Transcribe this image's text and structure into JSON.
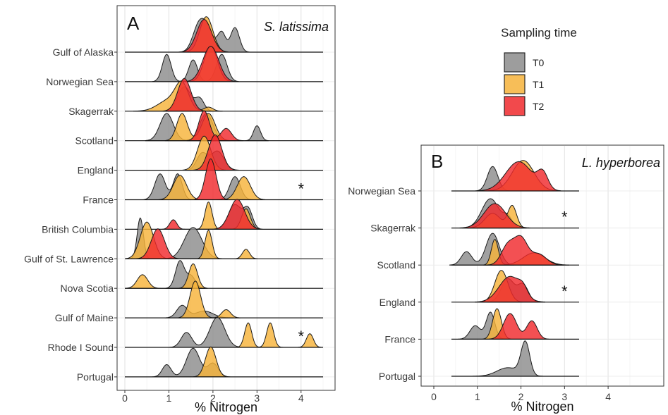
{
  "legend": {
    "title": "Sampling time",
    "items": [
      {
        "label": "T0",
        "color": "#8c8c8c"
      },
      {
        "label": "T1",
        "color": "#f6b33b"
      },
      {
        "label": "T2",
        "color": "#f0292d"
      }
    ]
  },
  "chart_data": [
    {
      "type": "ridgeline",
      "panel_label": "A",
      "species": "S. latissima",
      "xlabel": "% Nitrogen",
      "xlim": [
        0,
        4.5
      ],
      "x_ticks": [
        0,
        1,
        2,
        3,
        4
      ],
      "grid": true,
      "categories": [
        "Gulf of Alaska",
        "Norwegian Sea",
        "Skagerrak",
        "Scotland",
        "England",
        "France",
        "British Columbia",
        "Gulf of St. Lawrence",
        "Nova Scotia",
        "Gulf of Maine",
        "Rhode I Sound",
        "Portugal"
      ],
      "significance_markers": [
        {
          "row": "France",
          "x": 4.0,
          "text": "*"
        },
        {
          "row": "Rhode I Sound",
          "x": 4.0,
          "text": "*"
        }
      ],
      "series": {
        "T0": [
          {
            "row": "Gulf of Alaska",
            "peaks": [
              [
                1.65,
                0.13,
                0.7
              ],
              [
                1.85,
                0.15,
                0.9
              ],
              [
                2.2,
                0.09,
                0.7
              ],
              [
                2.5,
                0.1,
                0.9
              ]
            ]
          },
          {
            "row": "Norwegian Sea",
            "peaks": [
              [
                0.95,
                0.1,
                1.0
              ],
              [
                1.55,
                0.1,
                0.8
              ],
              [
                2.2,
                0.12,
                1.0
              ]
            ]
          },
          {
            "row": "Skagerrak",
            "peaks": [
              [
                1.35,
                0.15,
                0.9
              ],
              [
                1.7,
                0.1,
                0.45
              ]
            ]
          },
          {
            "row": "Scotland",
            "peaks": [
              [
                0.95,
                0.15,
                1.0
              ],
              [
                1.85,
                0.15,
                1.0
              ],
              [
                3.0,
                0.08,
                0.55
              ]
            ]
          },
          {
            "row": "England",
            "peaks": [
              [
                1.75,
                0.12,
                0.6
              ],
              [
                2.1,
                0.15,
                0.7
              ]
            ]
          },
          {
            "row": "France",
            "peaks": [
              [
                0.8,
                0.12,
                0.95
              ],
              [
                1.2,
                0.1,
                0.95
              ],
              [
                2.5,
                0.12,
                0.85
              ]
            ]
          },
          {
            "row": "British Columbia",
            "peaks": [
              [
                2.5,
                0.15,
                0.9
              ],
              [
                2.8,
                0.1,
                0.7
              ]
            ]
          },
          {
            "row": "Gulf of St. Lawrence",
            "peaks": [
              [
                0.35,
                0.07,
                1.5
              ],
              [
                1.55,
                0.2,
                1.15
              ]
            ]
          },
          {
            "row": "Nova Scotia",
            "peaks": [
              [
                1.25,
                0.1,
                1.0
              ],
              [
                1.5,
                0.1,
                0.45
              ]
            ]
          },
          {
            "row": "Gulf of Maine",
            "peaks": [
              [
                1.3,
                0.12,
                0.45
              ],
              [
                1.8,
                0.2,
                0.25
              ]
            ]
          },
          {
            "row": "Rhode I Sound",
            "peaks": [
              [
                1.4,
                0.12,
                0.55
              ],
              [
                2.1,
                0.17,
                1.1
              ]
            ]
          },
          {
            "row": "Portugal",
            "peaks": [
              [
                0.95,
                0.1,
                0.45
              ],
              [
                1.55,
                0.15,
                1.05
              ],
              [
                2.0,
                0.12,
                0.5
              ]
            ]
          }
        ],
        "T1": [
          {
            "row": "Gulf of Alaska",
            "peaks": [
              [
                1.85,
                0.15,
                1.3
              ]
            ]
          },
          {
            "row": "Norwegian Sea",
            "peaks": [
              [
                1.95,
                0.15,
                1.3
              ]
            ]
          },
          {
            "row": "Skagerrak",
            "peaks": [
              [
                1.0,
                0.25,
                0.4
              ],
              [
                1.3,
                0.15,
                0.9
              ],
              [
                1.9,
                0.1,
                0.15
              ]
            ]
          },
          {
            "row": "Scotland",
            "peaks": [
              [
                1.3,
                0.12,
                1.0
              ],
              [
                1.9,
                0.15,
                1.0
              ]
            ]
          },
          {
            "row": "England",
            "peaks": [
              [
                1.8,
                0.15,
                1.25
              ]
            ]
          },
          {
            "row": "France",
            "peaks": [
              [
                1.25,
                0.15,
                0.9
              ],
              [
                2.7,
                0.15,
                0.85
              ]
            ]
          },
          {
            "row": "British Columbia",
            "peaks": [
              [
                1.9,
                0.08,
                1.0
              ],
              [
                2.75,
                0.1,
                0.75
              ]
            ]
          },
          {
            "row": "Gulf of St. Lawrence",
            "peaks": [
              [
                0.5,
                0.15,
                1.35
              ],
              [
                1.9,
                0.08,
                1.05
              ],
              [
                2.75,
                0.08,
                0.35
              ]
            ]
          },
          {
            "row": "Nova Scotia",
            "peaks": [
              [
                0.4,
                0.12,
                0.5
              ],
              [
                1.55,
                0.1,
                0.9
              ]
            ]
          },
          {
            "row": "Gulf of Maine",
            "peaks": [
              [
                1.6,
                0.12,
                1.35
              ],
              [
                2.3,
                0.1,
                0.3
              ]
            ]
          },
          {
            "row": "Rhode I Sound",
            "peaks": [
              [
                2.8,
                0.08,
                0.9
              ],
              [
                3.3,
                0.08,
                0.9
              ],
              [
                4.2,
                0.08,
                0.5
              ]
            ]
          },
          {
            "row": "Portugal",
            "peaks": [
              [
                1.95,
                0.12,
                1.1
              ]
            ]
          }
        ],
        "T2": [
          {
            "row": "Gulf of Alaska",
            "peaks": [
              [
                1.8,
                0.17,
                1.2
              ]
            ]
          },
          {
            "row": "Norwegian Sea",
            "peaks": [
              [
                1.95,
                0.18,
                1.3
              ]
            ]
          },
          {
            "row": "Skagerrak",
            "peaks": [
              [
                1.35,
                0.15,
                1.2
              ]
            ]
          },
          {
            "row": "Scotland",
            "peaks": [
              [
                1.8,
                0.12,
                1.1
              ],
              [
                2.3,
                0.12,
                0.45
              ]
            ]
          },
          {
            "row": "England",
            "peaks": [
              [
                2.05,
                0.15,
                1.3
              ]
            ]
          },
          {
            "row": "France",
            "peaks": [
              [
                1.95,
                0.12,
                1.5
              ]
            ]
          },
          {
            "row": "British Columbia",
            "peaks": [
              [
                1.1,
                0.08,
                0.35
              ],
              [
                2.55,
                0.17,
                1.1
              ]
            ]
          },
          {
            "row": "Gulf of St. Lawrence",
            "peaks": [
              [
                0.75,
                0.15,
                1.1
              ]
            ]
          },
          {
            "row": "Nova Scotia",
            "peaks": []
          },
          {
            "row": "Gulf of Maine",
            "peaks": []
          },
          {
            "row": "Rhode I Sound",
            "peaks": []
          },
          {
            "row": "Portugal",
            "peaks": []
          }
        ]
      }
    },
    {
      "type": "ridgeline",
      "panel_label": "B",
      "species": "L. hyperborea",
      "xlabel": "% Nitrogen",
      "xlim": [
        0,
        4.5
      ],
      "x_ticks": [
        0,
        1,
        2,
        3,
        4
      ],
      "grid": true,
      "categories": [
        "Norwegian Sea",
        "Skagerrak",
        "Scotland",
        "England",
        "France",
        "Portugal"
      ],
      "significance_markers": [
        {
          "row": "Skagerrak",
          "x": 3.0,
          "text": "*"
        },
        {
          "row": "England",
          "x": 3.0,
          "text": "*"
        }
      ],
      "series": {
        "T0": [
          {
            "row": "Norwegian Sea",
            "peaks": [
              [
                1.35,
                0.12,
                1.0
              ]
            ]
          },
          {
            "row": "Skagerrak",
            "peaks": [
              [
                1.3,
                0.2,
                1.2
              ],
              [
                1.7,
                0.1,
                0.4
              ]
            ]
          },
          {
            "row": "Scotland",
            "peaks": [
              [
                0.75,
                0.12,
                0.55
              ],
              [
                1.35,
                0.15,
                1.3
              ]
            ]
          },
          {
            "row": "England",
            "peaks": [
              [
                1.7,
                0.15,
                0.95
              ],
              [
                2.05,
                0.12,
                0.7
              ]
            ]
          },
          {
            "row": "France",
            "peaks": [
              [
                0.95,
                0.12,
                0.55
              ],
              [
                1.3,
                0.1,
                1.1
              ]
            ]
          },
          {
            "row": "Portugal",
            "peaks": [
              [
                1.7,
                0.25,
                0.35
              ],
              [
                2.1,
                0.1,
                1.35
              ]
            ]
          }
        ],
        "T1": [
          {
            "row": "Norwegian Sea",
            "peaks": [
              [
                2.05,
                0.25,
                1.25
              ]
            ]
          },
          {
            "row": "Skagerrak",
            "peaks": [
              [
                1.35,
                0.18,
                0.6
              ],
              [
                1.8,
                0.1,
                0.9
              ]
            ]
          },
          {
            "row": "Scotland",
            "peaks": [
              [
                1.4,
                0.08,
                1.05
              ],
              [
                2.3,
                0.25,
                0.5
              ]
            ]
          },
          {
            "row": "England",
            "peaks": [
              [
                1.55,
                0.15,
                1.3
              ]
            ]
          },
          {
            "row": "France",
            "peaks": [
              [
                1.45,
                0.1,
                1.25
              ]
            ]
          },
          {
            "row": "Portugal",
            "peaks": []
          }
        ],
        "T2": [
          {
            "row": "Norwegian Sea",
            "peaks": [
              [
                1.95,
                0.3,
                1.2
              ],
              [
                2.5,
                0.12,
                0.65
              ]
            ]
          },
          {
            "row": "Skagerrak",
            "peaks": [
              [
                1.4,
                0.25,
                1.0
              ]
            ]
          },
          {
            "row": "Scotland",
            "peaks": [
              [
                1.7,
                0.15,
                0.8
              ],
              [
                2.0,
                0.15,
                1.05
              ],
              [
                2.4,
                0.18,
                0.45
              ]
            ]
          },
          {
            "row": "England",
            "peaks": [
              [
                1.75,
                0.25,
                1.05
              ],
              [
                2.05,
                0.1,
                0.3
              ]
            ]
          },
          {
            "row": "France",
            "peaks": [
              [
                1.75,
                0.15,
                1.05
              ],
              [
                2.25,
                0.12,
                0.75
              ]
            ]
          },
          {
            "row": "Portugal",
            "peaks": []
          }
        ]
      }
    }
  ]
}
